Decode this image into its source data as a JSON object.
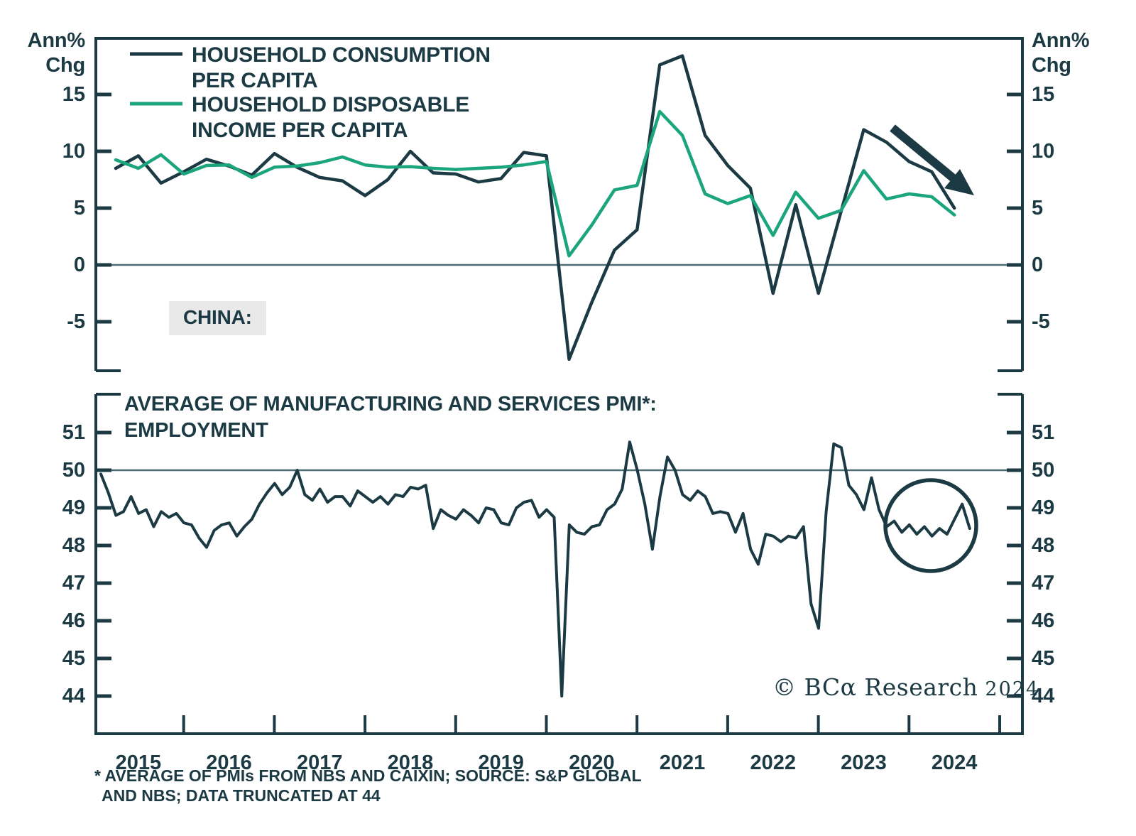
{
  "header": {
    "y_axis_unit_line1": "Ann%",
    "y_axis_unit_line2": "Chg"
  },
  "top_panel": {
    "region_label": "CHINA:",
    "legend": [
      {
        "label_line1": "HOUSEHOLD CONSUMPTION",
        "label_line2": "PER CAPITA",
        "color": "#1c3a43"
      },
      {
        "label_line1": "HOUSEHOLD DISPOSABLE",
        "label_line2": "INCOME PER CAPITA",
        "color": "#1ba57c"
      }
    ]
  },
  "bottom_panel": {
    "title_line1": "AVERAGE OF MANUFACTURING AND SERVICES PMI*:",
    "title_line2": "EMPLOYMENT"
  },
  "x_axis": {
    "years": [
      "2015",
      "2016",
      "2017",
      "2018",
      "2019",
      "2020",
      "2021",
      "2022",
      "2023",
      "2024"
    ]
  },
  "credit": {
    "text": "© BCα Research",
    "year": "2024"
  },
  "footnote": {
    "line1": "* AVERAGE OF PMIs FROM NBS AND CAIXIN; SOURCE: S&P GLOBAL",
    "line2": "AND NBS; DATA TRUNCATED AT 44"
  },
  "colors": {
    "dark": "#1c3a43",
    "green": "#1ba57c",
    "reference_line": "#4e6d77",
    "label_box": "#e9e9e9"
  },
  "chart_data": [
    {
      "type": "line",
      "title": "CHINA: HOUSEHOLD CONSUMPTION AND DISPOSABLE INCOME PER CAPITA",
      "ylabel": "Ann% Chg",
      "x_start": "2015Q1",
      "frequency": "quarterly",
      "ylim": [
        -9.3,
        19.9
      ],
      "y_ticks": [
        15,
        10,
        5,
        0,
        -5
      ],
      "reference_line": 0,
      "grid": false,
      "legend_position": "top-left",
      "series": [
        {
          "name": "HOUSEHOLD CONSUMPTION PER CAPITA",
          "color": "#1c3a43",
          "values": [
            8.5,
            9.6,
            7.2,
            8.2,
            9.3,
            8.7,
            7.9,
            9.8,
            8.6,
            7.7,
            7.4,
            6.1,
            7.5,
            10.0,
            8.1,
            8.0,
            7.3,
            7.6,
            9.9,
            9.6,
            -8.3,
            -3.3,
            1.3,
            3.1,
            17.6,
            18.4,
            11.4,
            8.75,
            6.75,
            -2.5,
            5.3,
            -2.5,
            4.7,
            11.9,
            10.8,
            9.1,
            8.2,
            5.0
          ]
        },
        {
          "name": "HOUSEHOLD DISPOSABLE INCOME PER CAPITA",
          "color": "#1ba57c",
          "values": [
            9.25,
            8.5,
            9.7,
            8.0,
            8.75,
            8.8,
            7.7,
            8.6,
            8.7,
            9.0,
            9.5,
            8.8,
            8.6,
            8.65,
            8.5,
            8.4,
            8.5,
            8.6,
            8.8,
            9.1,
            0.8,
            3.5,
            6.6,
            7.0,
            13.5,
            11.4,
            6.25,
            5.4,
            6.1,
            2.6,
            6.4,
            4.1,
            4.8,
            8.3,
            5.8,
            6.25,
            6.0,
            4.4
          ]
        }
      ],
      "annotations": [
        "downtrend-arrow over 2023-2024 decline"
      ]
    },
    {
      "type": "line",
      "title": "AVERAGE OF MANUFACTURING AND SERVICES PMI: EMPLOYMENT",
      "x_start": "2015-01",
      "frequency": "monthly",
      "ylim": [
        43.0,
        52.0
      ],
      "y_ticks": [
        51,
        50,
        49,
        48,
        47,
        46,
        45,
        44
      ],
      "reference_line": 50,
      "grid": false,
      "truncated_at": 44,
      "series": [
        {
          "name": "PMI EMPLOYMENT (AVERAGE OF MANUFACTURING AND SERVICES)",
          "color": "#1c3a43",
          "values": [
            49.9,
            49.4,
            48.8,
            48.9,
            49.3,
            48.85,
            48.95,
            48.5,
            48.9,
            48.75,
            48.85,
            48.6,
            48.55,
            48.2,
            47.95,
            48.4,
            48.55,
            48.6,
            48.25,
            48.5,
            48.7,
            49.1,
            49.4,
            49.65,
            49.35,
            49.55,
            50.0,
            49.35,
            49.2,
            49.5,
            49.15,
            49.3,
            49.3,
            49.05,
            49.45,
            49.3,
            49.15,
            49.3,
            49.1,
            49.35,
            49.3,
            49.55,
            49.5,
            49.6,
            48.45,
            48.95,
            48.8,
            48.7,
            48.95,
            48.8,
            48.6,
            49.0,
            48.95,
            48.6,
            48.55,
            49.0,
            49.15,
            49.2,
            48.75,
            48.95,
            48.75,
            44.0,
            48.55,
            48.35,
            48.3,
            48.5,
            48.55,
            48.95,
            49.1,
            49.5,
            50.75,
            50.0,
            49.1,
            47.9,
            49.3,
            50.35,
            50.0,
            49.35,
            49.2,
            49.45,
            49.3,
            48.85,
            48.9,
            48.85,
            48.35,
            48.85,
            47.9,
            47.5,
            48.3,
            48.25,
            48.1,
            48.25,
            48.2,
            48.5,
            46.45,
            45.8,
            48.9,
            50.7,
            50.6,
            49.6,
            49.35,
            48.95,
            49.8,
            48.95,
            48.5,
            48.65,
            48.35,
            48.55,
            48.3,
            48.5,
            48.25,
            48.45,
            48.3,
            48.7,
            49.1,
            48.45
          ]
        }
      ],
      "annotations": [
        "circle highlighting 2023-2024 sideways range"
      ]
    }
  ]
}
